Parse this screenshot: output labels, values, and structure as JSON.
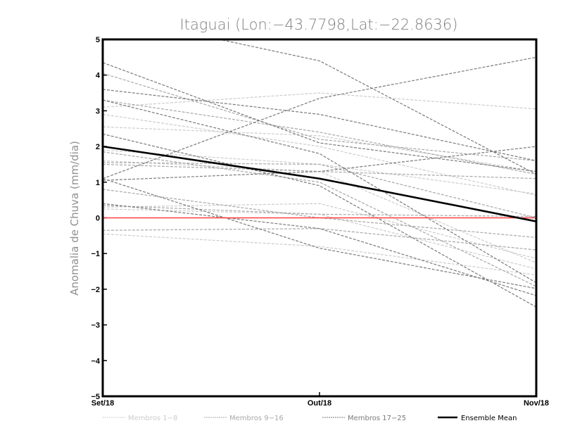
{
  "chart_data": {
    "type": "line",
    "title": "Itaguai (Lon:−43.7798,Lat:−22.8636)",
    "xlabel": "",
    "ylabel": "Anomalia de Chuva (mm/dia)",
    "categories": [
      "Set/18",
      "Out/18",
      "Nov/18"
    ],
    "ylim": [
      -5,
      5
    ],
    "yticks": [
      5,
      4,
      3,
      2,
      1,
      0,
      -1,
      -2,
      -3,
      -4,
      -5
    ],
    "ytick_labels": [
      "5",
      "4",
      "3",
      "2",
      "1",
      "0",
      "−1",
      "−2",
      "−3",
      "−4",
      "−5"
    ],
    "grid": false,
    "reference_line": {
      "value": 0,
      "color": "#ff4040"
    },
    "groups": [
      {
        "name": "Membros 1-8",
        "label": "Membros 1−8",
        "color": "#cccccc"
      },
      {
        "name": "Membros 9-16",
        "label": "Membros 9−16",
        "color": "#a8a8a8"
      },
      {
        "name": "Membros 17-25",
        "label": "Membros 17−25",
        "color": "#7a7a7a"
      }
    ],
    "series": [
      {
        "group": 0,
        "values": [
          3.1,
          3.5,
          3.05
        ]
      },
      {
        "group": 0,
        "values": [
          2.55,
          2.3,
          1.3
        ]
      },
      {
        "group": 0,
        "values": [
          1.9,
          1.5,
          0.67
        ]
      },
      {
        "group": 0,
        "values": [
          0.25,
          0.1,
          -1.43
        ]
      },
      {
        "group": 0,
        "values": [
          -0.45,
          -0.8,
          -1.6
        ]
      },
      {
        "group": 0,
        "values": [
          1.6,
          1.3,
          -1.26
        ]
      },
      {
        "group": 0,
        "values": [
          2.9,
          2.0,
          0.63
        ]
      },
      {
        "group": 0,
        "values": [
          0.3,
          0.4,
          -1.14
        ]
      },
      {
        "group": 1,
        "values": [
          4.05,
          2.2,
          1.6
        ]
      },
      {
        "group": 1,
        "values": [
          3.3,
          2.4,
          1.22
        ]
      },
      {
        "group": 1,
        "values": [
          1.85,
          1.0,
          -1.92
        ]
      },
      {
        "group": 1,
        "values": [
          1.5,
          1.3,
          1.1
        ]
      },
      {
        "group": 1,
        "values": [
          0.8,
          0.0,
          -0.55
        ]
      },
      {
        "group": 1,
        "values": [
          0.35,
          0.1,
          0.04
        ]
      },
      {
        "group": 1,
        "values": [
          -0.35,
          -0.3,
          -0.9
        ]
      },
      {
        "group": 1,
        "values": [
          1.55,
          1.5,
          0.0
        ]
      },
      {
        "group": 2,
        "values": [
          5.7,
          4.4,
          1.22
        ]
      },
      {
        "group": 2,
        "values": [
          4.35,
          2.1,
          1.3
        ]
      },
      {
        "group": 2,
        "values": [
          3.6,
          2.9,
          1.6
        ]
      },
      {
        "group": 2,
        "values": [
          3.3,
          1.8,
          -1.82
        ]
      },
      {
        "group": 2,
        "values": [
          2.35,
          0.9,
          -2.5
        ]
      },
      {
        "group": 2,
        "values": [
          1.1,
          3.35,
          4.5
        ]
      },
      {
        "group": 2,
        "values": [
          1.05,
          1.3,
          2.0
        ]
      },
      {
        "group": 2,
        "values": [
          1.1,
          -0.85,
          -1.98
        ]
      },
      {
        "group": 2,
        "values": [
          0.4,
          -0.3,
          -2.18
        ]
      }
    ],
    "ensemble_mean": {
      "name": "Ensemble Mean",
      "values": [
        2.0,
        1.1,
        -0.1
      ],
      "color": "#000000"
    },
    "legend_position": "bottom"
  }
}
